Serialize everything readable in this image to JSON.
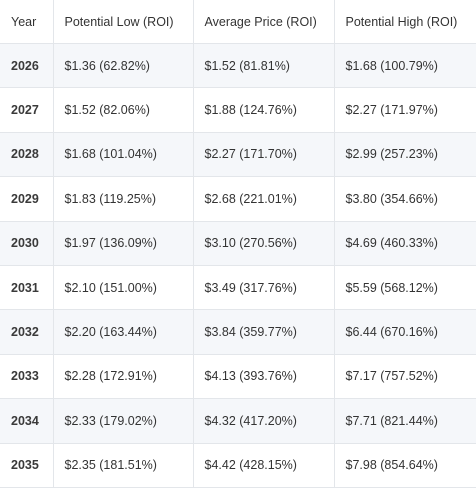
{
  "table": {
    "headers": [
      "Year",
      "Potential Low (ROI)",
      "Average Price (ROI)",
      "Potential High (ROI)"
    ],
    "rows": [
      {
        "year": "2026",
        "low": "$1.36 (62.82%)",
        "avg": "$1.52 (81.81%)",
        "high": "$1.68 (100.79%)"
      },
      {
        "year": "2027",
        "low": "$1.52 (82.06%)",
        "avg": "$1.88 (124.76%)",
        "high": "$2.27 (171.97%)"
      },
      {
        "year": "2028",
        "low": "$1.68 (101.04%)",
        "avg": "$2.27 (171.70%)",
        "high": "$2.99 (257.23%)"
      },
      {
        "year": "2029",
        "low": "$1.83 (119.25%)",
        "avg": "$2.68 (221.01%)",
        "high": "$3.80 (354.66%)"
      },
      {
        "year": "2030",
        "low": "$1.97 (136.09%)",
        "avg": "$3.10 (270.56%)",
        "high": "$4.69 (460.33%)"
      },
      {
        "year": "2031",
        "low": "$2.10 (151.00%)",
        "avg": "$3.49 (317.76%)",
        "high": "$5.59 (568.12%)"
      },
      {
        "year": "2032",
        "low": "$2.20 (163.44%)",
        "avg": "$3.84 (359.77%)",
        "high": "$6.44 (670.16%)"
      },
      {
        "year": "2033",
        "low": "$2.28 (172.91%)",
        "avg": "$4.13 (393.76%)",
        "high": "$7.17 (757.52%)"
      },
      {
        "year": "2034",
        "low": "$2.33 (179.02%)",
        "avg": "$4.32 (417.20%)",
        "high": "$7.71 (821.44%)"
      },
      {
        "year": "2035",
        "low": "$2.35 (181.51%)",
        "avg": "$4.42 (428.15%)",
        "high": "$7.98 (854.64%)"
      }
    ]
  }
}
